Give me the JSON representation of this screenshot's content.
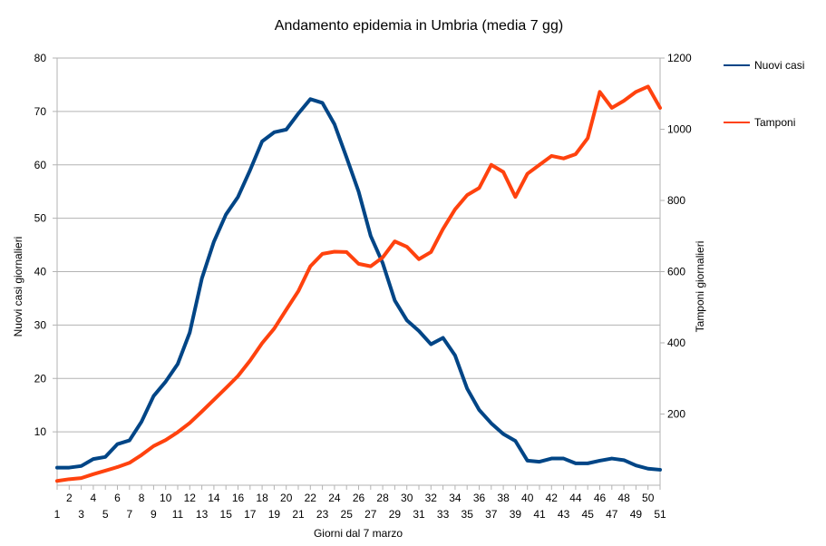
{
  "chart_data": {
    "type": "line",
    "title": "Andamento epidemia in Umbria (media 7 gg)",
    "xlabel": "Giorni dal 7 marzo",
    "ylabel_left": "Nuovi casi giornalieri",
    "ylabel_right": "Tamponi giornalieri",
    "x": [
      1,
      2,
      3,
      4,
      5,
      6,
      7,
      8,
      9,
      10,
      11,
      12,
      13,
      14,
      15,
      16,
      17,
      18,
      19,
      20,
      21,
      22,
      23,
      24,
      25,
      26,
      27,
      28,
      29,
      30,
      31,
      32,
      33,
      34,
      35,
      36,
      37,
      38,
      39,
      40,
      41,
      42,
      43,
      44,
      45,
      46,
      47,
      48,
      49,
      50,
      51
    ],
    "x_range": [
      1,
      51
    ],
    "y_left_range": [
      0,
      80
    ],
    "y_left_ticks": [
      10,
      20,
      30,
      40,
      50,
      60,
      70,
      80
    ],
    "y_right_range": [
      0,
      1200
    ],
    "y_right_ticks": [
      200,
      400,
      600,
      800,
      1000,
      1200
    ],
    "grid": true,
    "legend_position": "right",
    "series": [
      {
        "name": "Nuovi casi",
        "axis": "left",
        "color": "#004586",
        "values": [
          3.3,
          3.3,
          3.6,
          4.9,
          5.3,
          7.7,
          8.4,
          11.9,
          16.7,
          19.4,
          22.7,
          28.6,
          38.7,
          45.6,
          50.7,
          54.0,
          59.0,
          64.4,
          66.1,
          66.6,
          69.6,
          72.3,
          71.6,
          67.6,
          61.4,
          55.0,
          46.7,
          41.6,
          34.6,
          30.9,
          28.9,
          26.4,
          27.6,
          24.3,
          18.1,
          14.1,
          11.6,
          9.6,
          8.3,
          4.6,
          4.4,
          5.0,
          5.0,
          4.1,
          4.1,
          4.6,
          5.0,
          4.7,
          3.7,
          3.1,
          2.9
        ]
      },
      {
        "name": "Tamponi",
        "axis": "right",
        "color": "#ff420e",
        "values": [
          12,
          17,
          20,
          31,
          41,
          51,
          63,
          85,
          110,
          127,
          149,
          175,
          207,
          240,
          273,
          307,
          350,
          399,
          440,
          493,
          545,
          615,
          650,
          656,
          655,
          622,
          615,
          640,
          685,
          670,
          635,
          655,
          720,
          775,
          815,
          835,
          900,
          880,
          810,
          875,
          900,
          925,
          918,
          930,
          975,
          1105,
          1060,
          1080,
          1105,
          1120,
          1060
        ]
      }
    ]
  }
}
